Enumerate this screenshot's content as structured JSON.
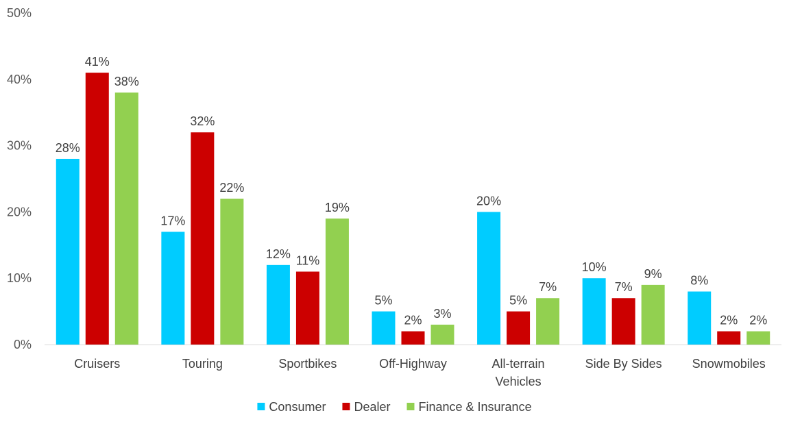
{
  "chart_data": {
    "type": "bar",
    "categories": [
      [
        "Cruisers"
      ],
      [
        "Touring"
      ],
      [
        "Sportbikes"
      ],
      [
        "Off-Highway"
      ],
      [
        "All-terrain",
        "Vehicles"
      ],
      [
        "Side By Sides"
      ],
      [
        "Snowmobiles"
      ]
    ],
    "series": [
      {
        "name": "Consumer",
        "color": "#00CCFF",
        "values": [
          28,
          17,
          12,
          5,
          20,
          10,
          8
        ]
      },
      {
        "name": "Dealer",
        "color": "#CC0000",
        "values": [
          41,
          32,
          11,
          2,
          5,
          7,
          2
        ]
      },
      {
        "name": "Finance & Insurance",
        "color": "#92D050",
        "values": [
          38,
          22,
          19,
          3,
          7,
          9,
          2
        ]
      }
    ],
    "ylim": [
      0,
      50
    ],
    "yticks": [
      "0%",
      "10%",
      "20%",
      "30%",
      "40%",
      "50%"
    ],
    "value_suffix": "%",
    "grid": false,
    "legend_position": "bottom"
  }
}
